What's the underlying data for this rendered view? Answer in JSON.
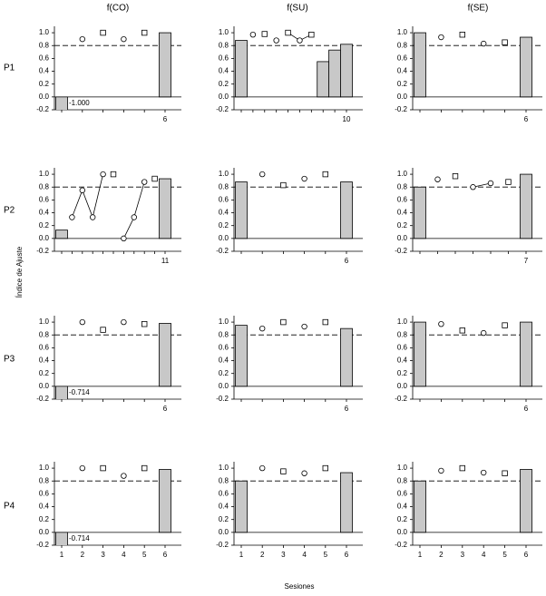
{
  "column_headers": [
    "f(CO)",
    "f(SU)",
    "f(SE)"
  ],
  "row_labels": [
    "P1",
    "P2",
    "P3",
    "P4"
  ],
  "y_label": "Índice de Ajuste",
  "x_label": "Sesiones",
  "chart_data": [
    {
      "type": "bar",
      "threshold": 0.8,
      "ylim": [
        -0.2,
        1.1
      ],
      "yticks": [
        -0.2,
        {
          "value": 0,
          "label": "0.0"
        },
        0.2,
        0.4,
        0.6,
        0.8,
        {
          "value": 1,
          "label": "1.0"
        }
      ],
      "categories": [
        null,
        null,
        null,
        null,
        null,
        "6"
      ],
      "series": [
        {
          "marker": "bar",
          "color": "#c8c8c8",
          "values": [
            -1.0,
            null,
            null,
            null,
            null,
            1.0
          ],
          "value_labels": [
            "-1.000",
            null,
            null,
            null,
            null,
            null
          ]
        },
        {
          "marker": "circle",
          "color": "#ffffff",
          "values": [
            null,
            0.9,
            null,
            0.9,
            null,
            null
          ]
        },
        {
          "marker": "square",
          "color": "#ffffff",
          "values": [
            null,
            null,
            1.0,
            null,
            1.0,
            null
          ]
        }
      ]
    },
    {
      "type": "bar",
      "threshold": 0.8,
      "ylim": [
        -0.2,
        1.1
      ],
      "yticks": [
        -0.2,
        {
          "value": 0,
          "label": "0.0"
        },
        0.2,
        0.4,
        0.6,
        0.8,
        {
          "value": 1,
          "label": "1.0"
        }
      ],
      "categories": [
        null,
        null,
        null,
        null,
        null,
        null,
        null,
        null,
        null,
        "10"
      ],
      "series": [
        {
          "marker": "bar",
          "color": "#c8c8c8",
          "values": [
            0.88,
            null,
            null,
            null,
            null,
            null,
            null,
            0.55,
            0.73,
            0.82
          ]
        },
        {
          "marker": "line",
          "color": "#000000",
          "values": [
            null,
            null,
            null,
            null,
            1.0,
            0.88,
            0.97,
            null,
            null,
            null
          ]
        },
        {
          "marker": "circle",
          "color": "#ffffff",
          "values": [
            null,
            0.97,
            null,
            0.88,
            null,
            0.88,
            null,
            null,
            null,
            null
          ]
        },
        {
          "marker": "square",
          "color": "#ffffff",
          "values": [
            null,
            null,
            0.98,
            null,
            1.0,
            null,
            0.97,
            null,
            null,
            null
          ]
        }
      ]
    },
    {
      "type": "bar",
      "threshold": 0.8,
      "ylim": [
        -0.2,
        1.1
      ],
      "yticks": [
        -0.2,
        {
          "value": 0,
          "label": "0.0"
        },
        0.2,
        0.4,
        0.6,
        0.8,
        {
          "value": 1,
          "label": "1.0"
        }
      ],
      "categories": [
        null,
        null,
        null,
        null,
        null,
        "6"
      ],
      "series": [
        {
          "marker": "bar",
          "color": "#c8c8c8",
          "values": [
            1.0,
            null,
            null,
            null,
            null,
            0.93
          ]
        },
        {
          "marker": "circle",
          "color": "#ffffff",
          "values": [
            null,
            0.93,
            null,
            0.83,
            null,
            null
          ]
        },
        {
          "marker": "square",
          "color": "#ffffff",
          "values": [
            null,
            null,
            0.97,
            null,
            0.85,
            null
          ]
        }
      ]
    },
    {
      "type": "bar",
      "threshold": 0.8,
      "ylim": [
        -0.2,
        1.1
      ],
      "yticks": [
        -0.2,
        {
          "value": 0,
          "label": "0.0"
        },
        0.2,
        0.4,
        0.6,
        0.8,
        {
          "value": 1,
          "label": "1.0"
        }
      ],
      "categories": [
        null,
        null,
        null,
        null,
        null,
        null,
        null,
        null,
        null,
        null,
        "11"
      ],
      "series": [
        {
          "marker": "bar",
          "color": "#c8c8c8",
          "values": [
            0.13,
            null,
            null,
            null,
            null,
            null,
            null,
            null,
            null,
            null,
            0.93
          ]
        },
        {
          "marker": "circle",
          "color": "#ffffff",
          "connect": true,
          "values": [
            null,
            0.33,
            0.75,
            0.33,
            1.0,
            null,
            0.0,
            0.33,
            0.88,
            null,
            null
          ]
        },
        {
          "marker": "square",
          "color": "#ffffff",
          "values": [
            null,
            null,
            null,
            null,
            null,
            1.0,
            null,
            null,
            null,
            0.93,
            null
          ]
        }
      ]
    },
    {
      "type": "bar",
      "threshold": 0.8,
      "ylim": [
        -0.2,
        1.1
      ],
      "yticks": [
        -0.2,
        {
          "value": 0,
          "label": "0.0"
        },
        0.2,
        0.4,
        0.6,
        0.8,
        {
          "value": 1,
          "label": "1.0"
        }
      ],
      "categories": [
        null,
        null,
        null,
        null,
        null,
        "6"
      ],
      "series": [
        {
          "marker": "bar",
          "color": "#c8c8c8",
          "values": [
            0.88,
            null,
            null,
            null,
            null,
            0.88
          ]
        },
        {
          "marker": "circle",
          "color": "#ffffff",
          "values": [
            null,
            1.0,
            null,
            0.93,
            null,
            null
          ]
        },
        {
          "marker": "square",
          "color": "#ffffff",
          "values": [
            null,
            null,
            0.83,
            null,
            1.0,
            null
          ]
        }
      ]
    },
    {
      "type": "bar",
      "threshold": 0.8,
      "ylim": [
        -0.2,
        1.1
      ],
      "yticks": [
        -0.2,
        {
          "value": 0,
          "label": "0.0"
        },
        0.2,
        0.4,
        0.6,
        0.8,
        {
          "value": 1,
          "label": "1.0"
        }
      ],
      "categories": [
        null,
        null,
        null,
        null,
        null,
        null,
        "7"
      ],
      "series": [
        {
          "marker": "bar",
          "color": "#c8c8c8",
          "values": [
            0.8,
            null,
            null,
            null,
            null,
            null,
            1.0
          ]
        },
        {
          "marker": "circle",
          "color": "#ffffff",
          "connect": true,
          "values": [
            null,
            0.92,
            null,
            0.8,
            0.86,
            null,
            null
          ]
        },
        {
          "marker": "square",
          "color": "#ffffff",
          "values": [
            null,
            null,
            0.97,
            null,
            null,
            0.88,
            null
          ]
        }
      ]
    },
    {
      "type": "bar",
      "threshold": 0.8,
      "ylim": [
        -0.2,
        1.1
      ],
      "yticks": [
        -0.2,
        {
          "value": 0,
          "label": "0.0"
        },
        0.2,
        0.4,
        0.6,
        0.8,
        {
          "value": 1,
          "label": "1.0"
        }
      ],
      "categories": [
        null,
        null,
        null,
        null,
        null,
        "6"
      ],
      "series": [
        {
          "marker": "bar",
          "color": "#c8c8c8",
          "values": [
            -0.714,
            null,
            null,
            null,
            null,
            0.98
          ],
          "value_labels": [
            "-0.714",
            null,
            null,
            null,
            null,
            null
          ]
        },
        {
          "marker": "circle",
          "color": "#ffffff",
          "values": [
            null,
            1.0,
            null,
            1.0,
            null,
            null
          ]
        },
        {
          "marker": "square",
          "color": "#ffffff",
          "values": [
            null,
            null,
            0.88,
            null,
            0.97,
            null
          ]
        }
      ]
    },
    {
      "type": "bar",
      "threshold": 0.8,
      "ylim": [
        -0.2,
        1.1
      ],
      "yticks": [
        -0.2,
        {
          "value": 0,
          "label": "0.0"
        },
        0.2,
        0.4,
        0.6,
        0.8,
        {
          "value": 1,
          "label": "1.0"
        }
      ],
      "categories": [
        null,
        null,
        null,
        null,
        null,
        "6"
      ],
      "series": [
        {
          "marker": "bar",
          "color": "#c8c8c8",
          "values": [
            0.95,
            null,
            null,
            null,
            null,
            0.9
          ]
        },
        {
          "marker": "circle",
          "color": "#ffffff",
          "values": [
            null,
            0.9,
            null,
            0.93,
            null,
            null
          ]
        },
        {
          "marker": "square",
          "color": "#ffffff",
          "values": [
            null,
            null,
            1.0,
            null,
            1.0,
            null
          ]
        }
      ]
    },
    {
      "type": "bar",
      "threshold": 0.8,
      "ylim": [
        -0.2,
        1.1
      ],
      "yticks": [
        -0.2,
        {
          "value": 0,
          "label": "0.0"
        },
        0.2,
        0.4,
        0.6,
        0.8,
        {
          "value": 1,
          "label": "1.0"
        }
      ],
      "categories": [
        null,
        null,
        null,
        null,
        null,
        "6"
      ],
      "series": [
        {
          "marker": "bar",
          "color": "#c8c8c8",
          "values": [
            1.0,
            null,
            null,
            null,
            null,
            1.0
          ]
        },
        {
          "marker": "circle",
          "color": "#ffffff",
          "values": [
            null,
            0.97,
            null,
            0.83,
            null,
            null
          ]
        },
        {
          "marker": "square",
          "color": "#ffffff",
          "values": [
            null,
            null,
            0.87,
            null,
            0.95,
            null
          ]
        }
      ]
    },
    {
      "type": "bar",
      "threshold": 0.8,
      "ylim": [
        -0.2,
        1.1
      ],
      "yticks": [
        -0.2,
        {
          "value": 0,
          "label": "0.0"
        },
        0.2,
        0.4,
        0.6,
        0.8,
        {
          "value": 1,
          "label": "1.0"
        }
      ],
      "categories": [
        "1",
        "2",
        "3",
        "4",
        "5",
        "6"
      ],
      "series": [
        {
          "marker": "bar",
          "color": "#c8c8c8",
          "values": [
            -0.714,
            null,
            null,
            null,
            null,
            0.98
          ],
          "value_labels": [
            "-0.714",
            null,
            null,
            null,
            null,
            null
          ]
        },
        {
          "marker": "circle",
          "color": "#ffffff",
          "values": [
            null,
            1.0,
            null,
            0.88,
            null,
            null
          ]
        },
        {
          "marker": "square",
          "color": "#ffffff",
          "values": [
            null,
            null,
            1.0,
            null,
            1.0,
            null
          ]
        }
      ]
    },
    {
      "type": "bar",
      "threshold": 0.8,
      "ylim": [
        -0.2,
        1.1
      ],
      "yticks": [
        -0.2,
        {
          "value": 0,
          "label": "0.0"
        },
        0.2,
        0.4,
        0.6,
        0.8,
        {
          "value": 1,
          "label": "1.0"
        }
      ],
      "categories": [
        "1",
        "2",
        "3",
        "4",
        "5",
        "6"
      ],
      "series": [
        {
          "marker": "bar",
          "color": "#c8c8c8",
          "values": [
            0.8,
            null,
            null,
            null,
            null,
            0.93
          ]
        },
        {
          "marker": "circle",
          "color": "#ffffff",
          "values": [
            null,
            1.0,
            null,
            0.92,
            null,
            null
          ]
        },
        {
          "marker": "square",
          "color": "#ffffff",
          "values": [
            null,
            null,
            0.95,
            null,
            1.0,
            null
          ]
        }
      ]
    },
    {
      "type": "bar",
      "threshold": 0.8,
      "ylim": [
        -0.2,
        1.1
      ],
      "yticks": [
        -0.2,
        {
          "value": 0,
          "label": "0.0"
        },
        0.2,
        0.4,
        0.6,
        0.8,
        {
          "value": 1,
          "label": "1.0"
        }
      ],
      "categories": [
        "1",
        "2",
        "3",
        "4",
        "5",
        "6"
      ],
      "series": [
        {
          "marker": "bar",
          "color": "#c8c8c8",
          "values": [
            0.8,
            null,
            null,
            null,
            null,
            0.98
          ]
        },
        {
          "marker": "circle",
          "color": "#ffffff",
          "values": [
            null,
            0.96,
            null,
            0.93,
            null,
            null
          ]
        },
        {
          "marker": "square",
          "color": "#ffffff",
          "values": [
            null,
            null,
            1.0,
            null,
            0.92,
            null
          ]
        }
      ]
    }
  ]
}
